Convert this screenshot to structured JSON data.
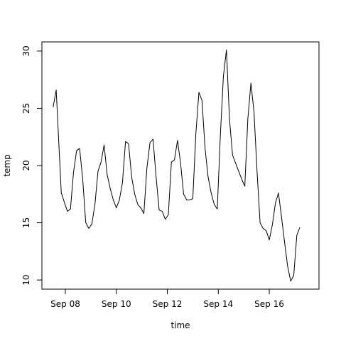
{
  "chart_data": {
    "type": "line",
    "title": "",
    "xlabel": "time",
    "ylabel": "temp",
    "x_ticks": [
      {
        "label": "Sep 08",
        "day": 8
      },
      {
        "label": "Sep 10",
        "day": 10
      },
      {
        "label": "Sep 12",
        "day": 12
      },
      {
        "label": "Sep 14",
        "day": 14
      },
      {
        "label": "Sep 16",
        "day": 16
      }
    ],
    "y_ticks": [
      10,
      15,
      20,
      25,
      30
    ],
    "xlim_days": [
      7.08,
      17.95
    ],
    "ylim": [
      9.2,
      30.8
    ],
    "grid": false,
    "legend": "none",
    "series": [
      {
        "color": "#000000",
        "points": [
          [
            7.52,
            25.1
          ],
          [
            7.64,
            26.6
          ],
          [
            7.76,
            21.2
          ],
          [
            7.84,
            17.6
          ],
          [
            7.96,
            16.8
          ],
          [
            8.08,
            16.0
          ],
          [
            8.2,
            16.2
          ],
          [
            8.32,
            19.4
          ],
          [
            8.44,
            21.3
          ],
          [
            8.56,
            21.5
          ],
          [
            8.68,
            18.8
          ],
          [
            8.8,
            15.0
          ],
          [
            8.92,
            14.5
          ],
          [
            9.04,
            14.9
          ],
          [
            9.16,
            16.6
          ],
          [
            9.28,
            19.5
          ],
          [
            9.4,
            20.3
          ],
          [
            9.52,
            21.8
          ],
          [
            9.64,
            19.2
          ],
          [
            9.76,
            18.0
          ],
          [
            9.88,
            17.0
          ],
          [
            10.0,
            16.3
          ],
          [
            10.12,
            17.0
          ],
          [
            10.24,
            18.5
          ],
          [
            10.36,
            22.1
          ],
          [
            10.48,
            21.9
          ],
          [
            10.6,
            19.0
          ],
          [
            10.72,
            17.5
          ],
          [
            10.84,
            16.6
          ],
          [
            10.96,
            16.3
          ],
          [
            11.08,
            15.8
          ],
          [
            11.2,
            19.8
          ],
          [
            11.32,
            22.0
          ],
          [
            11.44,
            22.3
          ],
          [
            11.56,
            19.0
          ],
          [
            11.68,
            16.1
          ],
          [
            11.8,
            16.0
          ],
          [
            11.92,
            15.3
          ],
          [
            12.04,
            15.7
          ],
          [
            12.16,
            20.3
          ],
          [
            12.28,
            20.5
          ],
          [
            12.4,
            22.2
          ],
          [
            12.52,
            20.2
          ],
          [
            12.64,
            17.5
          ],
          [
            12.76,
            17.0
          ],
          [
            12.88,
            17.0
          ],
          [
            13.0,
            17.1
          ],
          [
            13.12,
            22.8
          ],
          [
            13.24,
            26.4
          ],
          [
            13.36,
            25.7
          ],
          [
            13.48,
            21.5
          ],
          [
            13.6,
            19.0
          ],
          [
            13.72,
            17.6
          ],
          [
            13.84,
            16.6
          ],
          [
            13.96,
            16.2
          ],
          [
            14.08,
            22.6
          ],
          [
            14.2,
            27.8
          ],
          [
            14.32,
            30.1
          ],
          [
            14.44,
            24.0
          ],
          [
            14.56,
            20.9
          ],
          [
            14.68,
            20.2
          ],
          [
            14.8,
            19.5
          ],
          [
            14.92,
            18.8
          ],
          [
            15.04,
            18.2
          ],
          [
            15.16,
            24.1
          ],
          [
            15.28,
            27.2
          ],
          [
            15.4,
            24.7
          ],
          [
            15.52,
            19.5
          ],
          [
            15.64,
            15.0
          ],
          [
            15.76,
            14.5
          ],
          [
            15.88,
            14.3
          ],
          [
            16.0,
            13.5
          ],
          [
            16.12,
            14.8
          ],
          [
            16.24,
            16.7
          ],
          [
            16.36,
            17.6
          ],
          [
            16.48,
            15.5
          ],
          [
            16.6,
            13.3
          ],
          [
            16.72,
            11.2
          ],
          [
            16.84,
            9.9
          ],
          [
            16.96,
            10.4
          ],
          [
            17.08,
            13.9
          ],
          [
            17.2,
            14.6
          ]
        ]
      }
    ]
  }
}
